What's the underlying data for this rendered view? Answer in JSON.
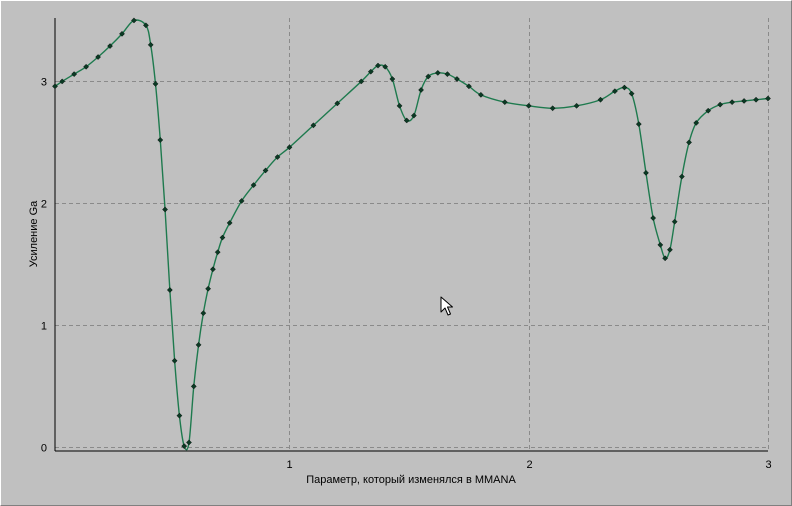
{
  "chart_data": {
    "type": "line",
    "title": "",
    "xlabel": "Параметр, который изменялся в MMANA",
    "ylabel": "Усиление Ga",
    "xlim": [
      0.02,
      3.0
    ],
    "ylim": [
      -0.03,
      3.52
    ],
    "x_ticks": [
      1,
      2,
      3
    ],
    "y_ticks": [
      0,
      1,
      2,
      3
    ],
    "x_tick_labels": [
      "1",
      "2",
      "3"
    ],
    "y_tick_labels": [
      "0",
      "1",
      "2",
      "3"
    ],
    "grid": true,
    "grid_style": "dashed",
    "colors": {
      "line": "#1e7a4e",
      "marker": "#0b3a24",
      "plot_bg": "#c0c0c0",
      "grid": "#8a8a8a"
    },
    "series": [
      {
        "marker": "diamond",
        "x": [
          0.02,
          0.05,
          0.1,
          0.15,
          0.2,
          0.25,
          0.3,
          0.35,
          0.4,
          0.42,
          0.44,
          0.46,
          0.48,
          0.5,
          0.52,
          0.54,
          0.56,
          0.58,
          0.6,
          0.62,
          0.64,
          0.66,
          0.68,
          0.7,
          0.72,
          0.75,
          0.8,
          0.85,
          0.9,
          0.95,
          1.0,
          1.1,
          1.2,
          1.3,
          1.34,
          1.37,
          1.4,
          1.43,
          1.46,
          1.49,
          1.52,
          1.55,
          1.58,
          1.62,
          1.66,
          1.7,
          1.75,
          1.8,
          1.9,
          2.0,
          2.1,
          2.2,
          2.3,
          2.36,
          2.4,
          2.43,
          2.46,
          2.49,
          2.52,
          2.55,
          2.57,
          2.59,
          2.61,
          2.64,
          2.67,
          2.7,
          2.75,
          2.8,
          2.85,
          2.9,
          2.95,
          3.0
        ],
        "y": [
          2.96,
          3.0,
          3.06,
          3.12,
          3.2,
          3.29,
          3.39,
          3.5,
          3.46,
          3.3,
          2.98,
          2.52,
          1.95,
          1.29,
          0.71,
          0.26,
          0.01,
          0.04,
          0.5,
          0.84,
          1.1,
          1.3,
          1.46,
          1.6,
          1.72,
          1.84,
          2.02,
          2.15,
          2.27,
          2.38,
          2.46,
          2.64,
          2.82,
          3.0,
          3.08,
          3.13,
          3.12,
          3.02,
          2.8,
          2.68,
          2.72,
          2.93,
          3.04,
          3.07,
          3.06,
          3.02,
          2.96,
          2.89,
          2.83,
          2.8,
          2.78,
          2.8,
          2.85,
          2.92,
          2.95,
          2.9,
          2.65,
          2.25,
          1.88,
          1.66,
          1.55,
          1.62,
          1.85,
          2.22,
          2.5,
          2.66,
          2.76,
          2.81,
          2.83,
          2.84,
          2.85,
          2.86
        ]
      }
    ]
  }
}
